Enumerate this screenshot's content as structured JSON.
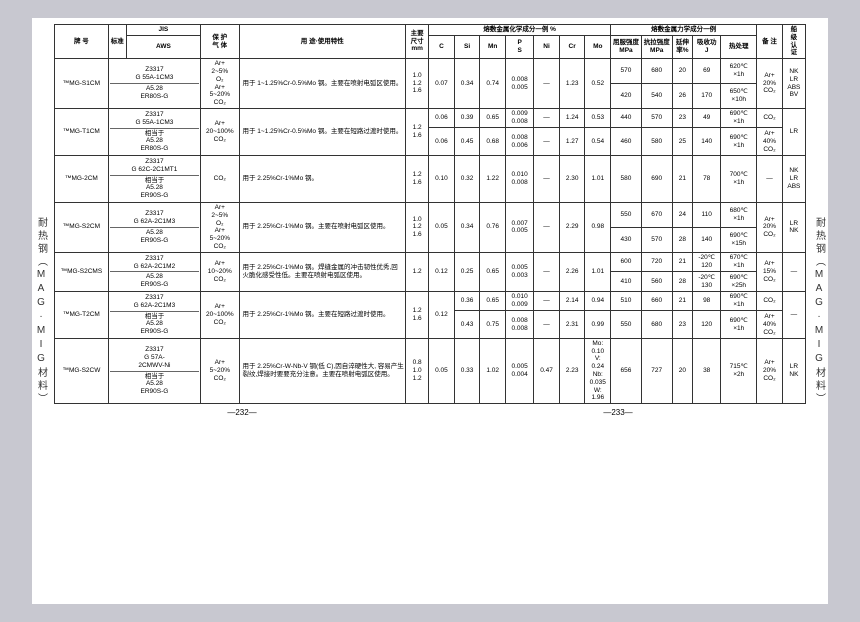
{
  "side_left": "耐热钢（MAG·MIG材料）",
  "side_right": "耐热钢（MAG·MIG材料）",
  "page_left": "—232—",
  "page_right": "—233—",
  "head": {
    "brand": "牌 号",
    "standard": "标准",
    "jis": "JIS",
    "aws": "AWS",
    "gas": "保 护\n气 体",
    "use": "用 途·使用特性",
    "dim": "主要\n尺寸\nmm",
    "chem_group": "熔敷金属化学成分一例 %",
    "mech_group": "熔敷金属力学成分一例",
    "c": "C",
    "si": "Si",
    "mn": "Mn",
    "ps": "P\nS",
    "ni": "Ni",
    "cr": "Cr",
    "mo": "Mo",
    "ys": "屈服强度\nMPa",
    "ts": "抗拉强度\nMPa",
    "el": "延伸\n率%",
    "im": "吸收功\nJ",
    "ht": "热处理",
    "note": "备 注",
    "ship": "船\n级\n认\n证"
  },
  "rows": [
    {
      "brand": "™MG-S1CM",
      "jis": "Z3317\nG 55A-1CM3",
      "aws": "A5.28\nER80S-G",
      "gas": "Ar+\n2~5%\nO₂\nAr+\n5~20%\nCO₂",
      "use": "用于 1~1.25%Cr-0.5%Mo 钢。主要在喷射电弧区使用。",
      "dim": "1.0\n1.2\n1.6",
      "c": "0.07",
      "si": "0.34",
      "mn": "0.74",
      "ps": "0.008\n0.005",
      "ni": "—",
      "cr": "1.23",
      "mo": "0.52",
      "mech": [
        {
          "ys": "570",
          "ts": "680",
          "el": "20",
          "im": "69",
          "ht": "620℃\n×1h"
        },
        {
          "ys": "420",
          "ts": "540",
          "el": "26",
          "im": "170",
          "ht": "650℃\n×10h"
        }
      ],
      "note": "Ar+\n20%\nCO₂",
      "ship": "NK\nLR\nABS\nBV"
    },
    {
      "brand": "™MG-T1CM",
      "jis": "Z3317\nG 55A-1CM3",
      "aws": "相当于\nA5.28\nER80S-G",
      "gas": "Ar+\n20~100%\nCO₂",
      "use": "用于 1~1.25%Cr-0.5%Mo 钢。主要在短路过渡时使用。",
      "dim": "1.2\n1.6",
      "sub": [
        {
          "c": "0.06",
          "si": "0.39",
          "mn": "0.65",
          "ps": "0.009\n0.008",
          "ni": "—",
          "cr": "1.24",
          "mo": "0.53",
          "ys": "440",
          "ts": "570",
          "el": "23",
          "im": "49",
          "ht": "690℃\n×1h",
          "note": "CO₂"
        },
        {
          "c": "0.06",
          "si": "0.45",
          "mn": "0.68",
          "ps": "0.008\n0.006",
          "ni": "—",
          "cr": "1.27",
          "mo": "0.54",
          "ys": "460",
          "ts": "580",
          "el": "25",
          "im": "140",
          "ht": "690℃\n×1h",
          "note": "Ar+\n40%\nCO₂"
        }
      ],
      "ship": "LR"
    },
    {
      "brand": "™MG-2CM",
      "jis": "Z3317\nG 62C-2C1MT1",
      "aws": "相当于\nA5.28\nER90S-G",
      "gas": "CO₂",
      "use": "用于 2.25%Cr-1%Mo 钢。",
      "dim": "1.2\n1.6",
      "c": "0.10",
      "si": "0.32",
      "mn": "1.22",
      "ps": "0.010\n0.008",
      "ni": "—",
      "cr": "2.30",
      "mo": "1.01",
      "mech": [
        {
          "ys": "580",
          "ts": "690",
          "el": "21",
          "im": "78",
          "ht": "700℃\n×1h"
        }
      ],
      "note": "—",
      "ship": "NK\nLR\nABS"
    },
    {
      "brand": "™MG-S2CM",
      "jis": "Z3317\nG 62A-2C1M3",
      "aws": "A5.28\nER90S-G",
      "gas": "Ar+\n2~5%\nO₂\nAr+\n5~20%\nCO₂",
      "use": "用于 2.25%Cr-1%Mo 钢。主要在喷射电弧区使用。",
      "dim": "1.0\n1.2\n1.6",
      "c": "0.05",
      "si": "0.34",
      "mn": "0.76",
      "ps": "0.007\n0.005",
      "ni": "—",
      "cr": "2.29",
      "mo": "0.98",
      "mech": [
        {
          "ys": "550",
          "ts": "670",
          "el": "24",
          "im": "110",
          "ht": "680℃\n×1h"
        },
        {
          "ys": "430",
          "ts": "570",
          "el": "28",
          "im": "140",
          "ht": "690℃\n×15h"
        }
      ],
      "note": "Ar+\n20%\nCO₂",
      "ship": "LR\nNK"
    },
    {
      "brand": "™MG-S2CMS",
      "jis": "Z3317\nG 62A-2C1M2",
      "aws": "A5.28\nER90S-G",
      "gas": "Ar+\n10~20%\nCO₂",
      "use": "用于 2.25%Cr-1%Mo 钢。焊缝金属的冲击韧性优秀,回火脆化感受性低。主要在喷射电弧区使用。",
      "dim": "1.2",
      "c": "0.12",
      "si": "0.25",
      "mn": "0.65",
      "ps": "0.005\n0.003",
      "ni": "—",
      "cr": "2.26",
      "mo": "1.01",
      "mech": [
        {
          "ys": "600",
          "ts": "720",
          "el": "21",
          "im": "-20℃\n120",
          "ht": "670℃\n×1h"
        },
        {
          "ys": "410",
          "ts": "560",
          "el": "28",
          "im": "-20℃\n130",
          "ht": "690℃\n×25h"
        }
      ],
      "note": "Ar+\n15%\nCO₂",
      "ship": "—"
    },
    {
      "brand": "™MG-T2CM",
      "jis": "Z3317\nG 62A-2C1M3",
      "aws": "相当于\nA5.28\nER90S-G",
      "gas": "Ar+\n20~100%\nCO₂",
      "use": "用于 2.25%Cr-1%Mo 钢。主要在短路过渡时使用。",
      "dim": "1.2\n1.6",
      "c_main": "0.12",
      "sub": [
        {
          "si": "0.36",
          "mn": "0.65",
          "ps": "0.010\n0.009",
          "ni": "—",
          "cr": "2.14",
          "mo": "0.94",
          "ys": "510",
          "ts": "660",
          "el": "21",
          "im": "98",
          "ht": "690℃\n×1h",
          "note": "CO₂"
        },
        {
          "si": "0.43",
          "mn": "0.75",
          "ps": "0.008\n0.008",
          "ni": "—",
          "cr": "2.31",
          "mo": "0.99",
          "ys": "550",
          "ts": "680",
          "el": "23",
          "im": "120",
          "ht": "690℃\n×1h",
          "note": "Ar+\n40%\nCO₂"
        }
      ],
      "ship": "—"
    },
    {
      "brand": "™MG-S2CW",
      "jis": "Z3317\nG 57A-\n2CMWV-Ni",
      "aws": "相当于\nA5.28\nER90S-G",
      "gas": "Ar+\n5~20%\nCO₂",
      "use": "用于 2.25%Cr-W-Nb-V 钢(低 C),因自淬硬性大, 容易产生裂纹,焊接时要要充分注意。主要在喷射电弧区使用。",
      "dim": "0.8\n1.0\n1.2",
      "c": "0.05",
      "si": "0.33",
      "mn": "1.02",
      "ps": "0.005\n0.004",
      "ni": "0.47",
      "cr": "2.23",
      "mo": "Mo:\n0.10\nV:\n0.24\nNb:\n0.035\nW:\n1.96",
      "mech": [
        {
          "ys": "656",
          "ts": "727",
          "el": "20",
          "im": "38",
          "ht": "715℃\n×2h"
        }
      ],
      "note": "Ar+\n20%\nCO₂",
      "ship": "LR\nNK"
    }
  ]
}
